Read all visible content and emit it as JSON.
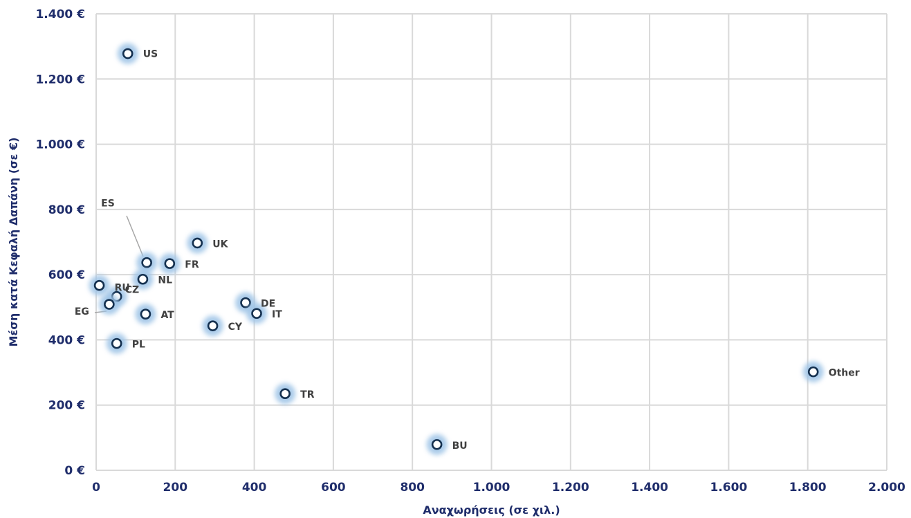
{
  "chart_data": {
    "type": "scatter",
    "title": "",
    "xlabel": "Αναχωρήσεις (σε χιλ.)",
    "ylabel": "Μέση κατά Κεφαλή Δαπάνη (σε €)",
    "xlim": [
      0,
      2000
    ],
    "ylim": [
      0,
      1400
    ],
    "x_ticks": [
      0,
      200,
      400,
      600,
      800,
      1000,
      1200,
      1400,
      1600,
      1800,
      2000
    ],
    "x_tick_labels": [
      "0",
      "200",
      "400",
      "600",
      "800",
      "1.000",
      "1.200",
      "1.400",
      "1.600",
      "1.800",
      "2.000"
    ],
    "y_ticks": [
      0,
      200,
      400,
      600,
      800,
      1000,
      1200,
      1400
    ],
    "y_tick_labels": [
      "0 €",
      "200 €",
      "400 €",
      "600 €",
      "800 €",
      "1.000 €",
      "1.200 €",
      "1.400 €"
    ],
    "grid": true,
    "colors": {
      "axis_text": "#1f2d6b",
      "gridline": "#d9d9d9",
      "marker_stroke": "#14304f",
      "marker_fill": "#ffffff",
      "marker_glow": "#9dc3e6",
      "label_text": "#404040",
      "leader_line": "#a6a6a6"
    },
    "points": [
      {
        "label": "US",
        "x": 80,
        "y": 1278
      },
      {
        "label": "UK",
        "x": 256,
        "y": 697
      },
      {
        "label": "ES",
        "x": 128,
        "y": 637
      },
      {
        "label": "FR",
        "x": 186,
        "y": 634
      },
      {
        "label": "NL",
        "x": 118,
        "y": 586
      },
      {
        "label": "RU",
        "x": 8,
        "y": 567
      },
      {
        "label": "CZ",
        "x": 52,
        "y": 533
      },
      {
        "label": "EG",
        "x": 33,
        "y": 509
      },
      {
        "label": "DE",
        "x": 378,
        "y": 514
      },
      {
        "label": "IT",
        "x": 406,
        "y": 481
      },
      {
        "label": "AT",
        "x": 125,
        "y": 479
      },
      {
        "label": "CY",
        "x": 295,
        "y": 443
      },
      {
        "label": "PL",
        "x": 52,
        "y": 389
      },
      {
        "label": "TR",
        "x": 478,
        "y": 235
      },
      {
        "label": "BU",
        "x": 862,
        "y": 79
      },
      {
        "label": "Other",
        "x": 1814,
        "y": 302
      }
    ]
  }
}
